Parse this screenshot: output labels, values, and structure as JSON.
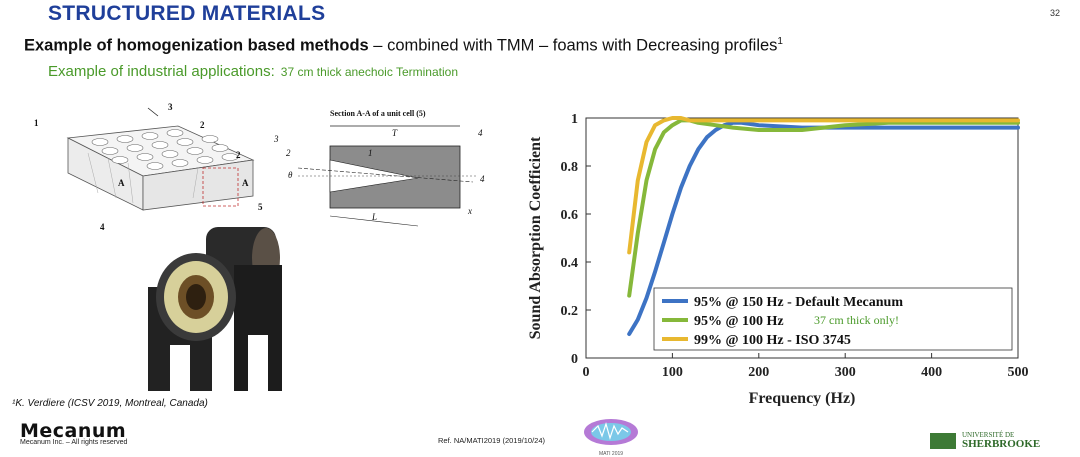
{
  "header": {
    "title": "STRUCTURED MATERIALS",
    "page_number": "32",
    "subtitle_bold": "Example of homogenization based methods",
    "subtitle_rest": " – combined with TMM – foams with Decreasing profiles",
    "subtitle_sup": "1",
    "subtitle2": "Example of industrial applications:",
    "subtitle2_small": "37 cm thick anechoic Termination"
  },
  "diagram_left": {
    "labels": [
      "1",
      "2",
      "3",
      "2",
      "A",
      "A",
      "5",
      "4"
    ]
  },
  "diagram_mid": {
    "title": "Section A-A of a unit cell (5)",
    "labels": [
      "T",
      "1",
      "3",
      "2",
      "θ",
      "4",
      "4",
      "L",
      "x"
    ]
  },
  "chart_data": {
    "type": "line",
    "xlabel": "Frequency (Hz)",
    "ylabel": "Sound Absorption Coefficient",
    "xlim": [
      0,
      500
    ],
    "ylim": [
      0,
      1
    ],
    "xticks": [
      "0",
      "100",
      "200",
      "300",
      "400",
      "500"
    ],
    "yticks": [
      "0",
      "0.2",
      "0.4",
      "0.6",
      "0.8",
      "1"
    ],
    "legend_position": "bottom-right",
    "series": [
      {
        "name": "95% @ 150 Hz - Default Mecanum",
        "color": "#3d73c4",
        "x": [
          50,
          60,
          70,
          80,
          90,
          100,
          110,
          120,
          130,
          140,
          150,
          160,
          170,
          180,
          200,
          250,
          300,
          400,
          500
        ],
        "y": [
          0.1,
          0.16,
          0.25,
          0.36,
          0.48,
          0.6,
          0.71,
          0.8,
          0.87,
          0.92,
          0.95,
          0.97,
          0.98,
          0.98,
          0.97,
          0.96,
          0.96,
          0.96,
          0.96
        ]
      },
      {
        "name": "95% @ 100 Hz",
        "annotation": "37 cm thick only!",
        "color": "#86b83a",
        "x": [
          50,
          60,
          70,
          80,
          90,
          100,
          110,
          120,
          130,
          150,
          170,
          200,
          250,
          300,
          350,
          400,
          500
        ],
        "y": [
          0.26,
          0.52,
          0.74,
          0.87,
          0.94,
          0.97,
          0.99,
          0.99,
          0.98,
          0.97,
          0.96,
          0.95,
          0.95,
          0.97,
          0.98,
          0.98,
          0.98
        ]
      },
      {
        "name": "99% @ 100 Hz - ISO 3745",
        "color": "#e8b830",
        "x": [
          50,
          60,
          70,
          80,
          90,
          100,
          110,
          120,
          140,
          160,
          200,
          250,
          300,
          400,
          500
        ],
        "y": [
          0.44,
          0.74,
          0.9,
          0.97,
          0.99,
          1.0,
          1.0,
          0.99,
          0.99,
          0.99,
          0.99,
          0.99,
          0.99,
          0.99,
          0.99
        ]
      }
    ]
  },
  "footnote": "¹K. Verdiere (ICSV 2019, Montreal, Canada)",
  "footer": {
    "brand": "Mecanum",
    "copyright": "Mecanum Inc. – All rights reserved",
    "reference": "Ref. NA/MATI2019  (2019/10/24)",
    "mati_label": "MATI 2019",
    "udes_line1": "UNIVERSITÉ DE",
    "udes_line2": "SHERBROOKE"
  }
}
